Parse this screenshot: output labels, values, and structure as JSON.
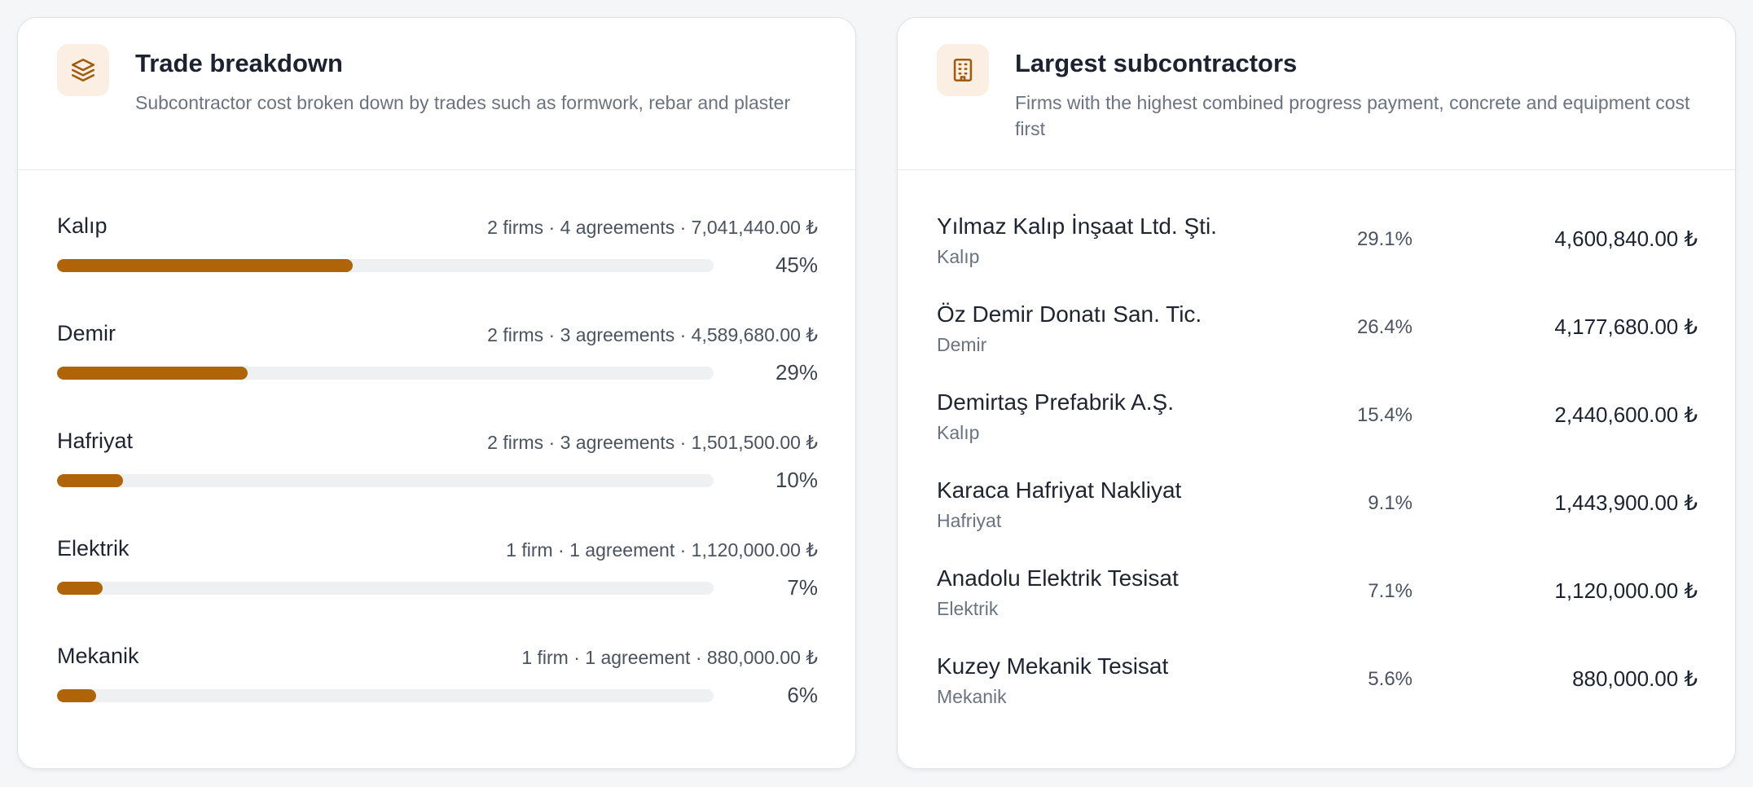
{
  "trade_card": {
    "title": "Trade breakdown",
    "subtitle": "Subcontractor cost broken down by trades such as formwork, rebar and plaster",
    "icon": "layers-icon",
    "accent_color": "#b0640a",
    "rows": [
      {
        "name": "Kalıp",
        "meta": "2 firms · 4 agreements · 7,041,440.00 ₺",
        "percent_label": "45%",
        "fill": 0.45
      },
      {
        "name": "Demir",
        "meta": "2 firms · 3 agreements · 4,589,680.00 ₺",
        "percent_label": "29%",
        "fill": 0.29
      },
      {
        "name": "Hafriyat",
        "meta": "2 firms · 3 agreements · 1,501,500.00 ₺",
        "percent_label": "10%",
        "fill": 0.1
      },
      {
        "name": "Elektrik",
        "meta": "1 firm · 1 agreement · 1,120,000.00 ₺",
        "percent_label": "7%",
        "fill": 0.07
      },
      {
        "name": "Mekanik",
        "meta": "1 firm · 1 agreement · 880,000.00 ₺",
        "percent_label": "6%",
        "fill": 0.06
      }
    ]
  },
  "subs_card": {
    "title": "Largest subcontractors",
    "subtitle": "Firms with the highest combined progress payment, concrete and equipment cost first",
    "icon": "building-icon",
    "rows": [
      {
        "name": "Yılmaz Kalıp İnşaat Ltd. Şti.",
        "trade": "Kalıp",
        "percent": "29.1%",
        "amount": "4,600,840.00 ₺"
      },
      {
        "name": "Öz Demir Donatı San. Tic.",
        "trade": "Demir",
        "percent": "26.4%",
        "amount": "4,177,680.00 ₺"
      },
      {
        "name": "Demirtaş Prefabrik A.Ş.",
        "trade": "Kalıp",
        "percent": "15.4%",
        "amount": "2,440,600.00 ₺"
      },
      {
        "name": "Karaca Hafriyat Nakliyat",
        "trade": "Hafriyat",
        "percent": "9.1%",
        "amount": "1,443,900.00 ₺"
      },
      {
        "name": "Anadolu Elektrik Tesisat",
        "trade": "Elektrik",
        "percent": "7.1%",
        "amount": "1,120,000.00 ₺"
      },
      {
        "name": "Kuzey Mekanik Tesisat",
        "trade": "Mekanik",
        "percent": "5.6%",
        "amount": "880,000.00 ₺"
      }
    ]
  }
}
